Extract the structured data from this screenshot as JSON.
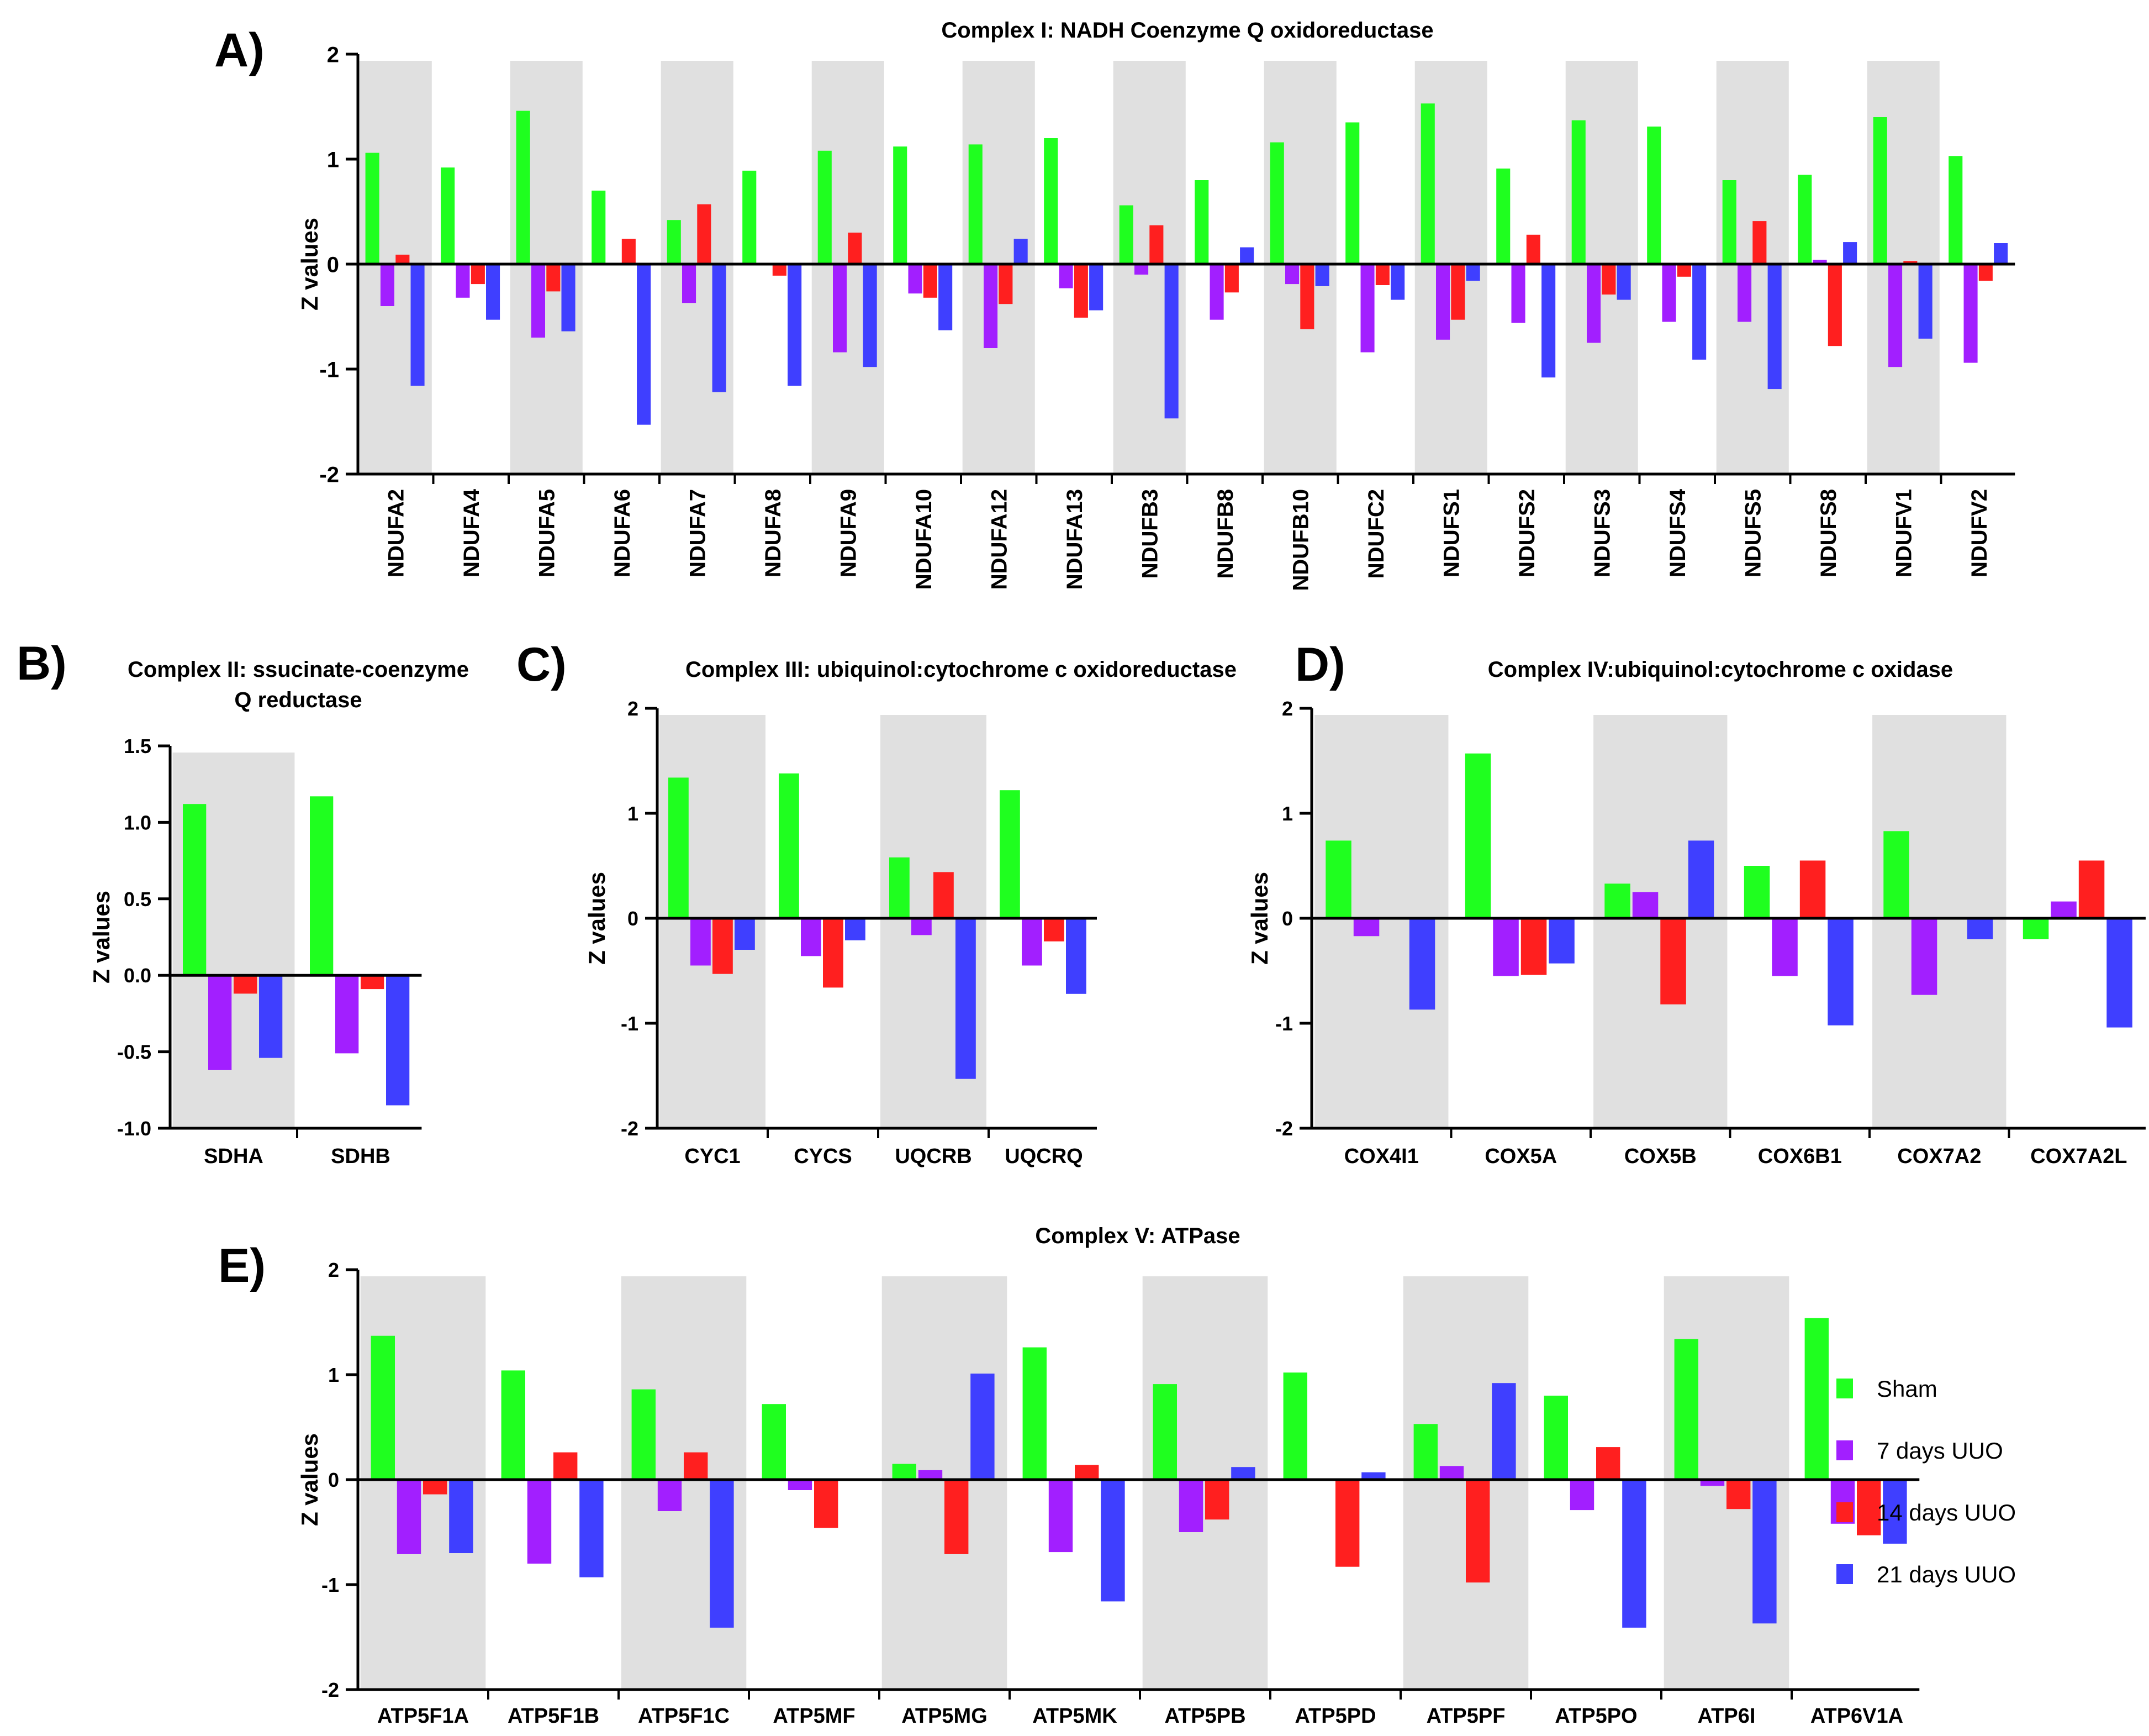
{
  "legend": {
    "colors": [
      "#1fff1f",
      "#a21fff",
      "#ff1f1f",
      "#3f3fff"
    ],
    "entries": [
      "Sham",
      "7 days UUO",
      "14 days UUO",
      "21 days UUO"
    ]
  },
  "chart_data": [
    {
      "panel_label": "A)",
      "type": "bar",
      "title": "Complex I: NADH Coenzyme Q oxidoreductase",
      "ylabel": "Z values",
      "ylim": [
        -2,
        2
      ],
      "yticks": [
        "2",
        "1",
        "0",
        "-1",
        "-2"
      ],
      "ytick_values": [
        2,
        1,
        0,
        -1,
        -2
      ],
      "categories": [
        "NDUFA2",
        "NDUFA4",
        "NDUFA5",
        "NDUFA6",
        "NDUFA7",
        "NDUFA8",
        "NDUFA9",
        "NDUFA10",
        "NDUFA12",
        "NDUFA13",
        "NDUFB3",
        "NDUFB8",
        "NDUFB10",
        "NDUFC2",
        "NDUFS1",
        "NDUFS2",
        "NDUFS3",
        "NDUFS4",
        "NDUFS5",
        "NDUFS8",
        "NDUFV1",
        "NDUFV2"
      ],
      "series": [
        {
          "name": "Sham",
          "values": [
            1.06,
            0.92,
            1.46,
            0.7,
            0.42,
            0.89,
            1.08,
            1.12,
            1.14,
            1.2,
            0.56,
            0.8,
            1.16,
            1.35,
            1.53,
            0.91,
            1.37,
            1.31,
            0.8,
            0.85,
            1.4,
            1.03
          ]
        },
        {
          "name": "7 days UUO",
          "values": [
            -0.4,
            -0.32,
            -0.7,
            0,
            -0.37,
            0,
            -0.84,
            -0.28,
            -0.8,
            -0.23,
            -0.1,
            -0.53,
            -0.19,
            -0.84,
            -0.72,
            -0.56,
            -0.75,
            -0.55,
            -0.55,
            0.04,
            -0.98,
            -0.94
          ]
        },
        {
          "name": "14 days UUO",
          "values": [
            0.09,
            -0.19,
            -0.26,
            0.24,
            0.57,
            -0.11,
            0.3,
            -0.32,
            -0.38,
            -0.51,
            0.37,
            -0.27,
            -0.62,
            -0.2,
            -0.53,
            0.28,
            -0.29,
            -0.12,
            0.41,
            -0.78,
            0.03,
            -0.16
          ]
        },
        {
          "name": "21 days UUO",
          "values": [
            -1.16,
            -0.53,
            -0.64,
            -1.53,
            -1.22,
            -1.16,
            -0.98,
            -0.63,
            0.24,
            -0.44,
            -1.47,
            0.16,
            -0.21,
            -0.34,
            -0.16,
            -1.08,
            -0.34,
            -0.91,
            -1.19,
            0.21,
            -0.71,
            0.2
          ]
        }
      ]
    },
    {
      "panel_label": "B)",
      "type": "bar",
      "title": "Complex II: ssucinate-coenzyme",
      "title2": "Q reductase",
      "ylabel": "Z values",
      "ylim": [
        -1.0,
        1.5
      ],
      "yticks": [
        "1.5",
        "1.0",
        "0.5",
        "0.0",
        "-0.5",
        "-1.0"
      ],
      "ytick_values": [
        1.5,
        1.0,
        0.5,
        0.0,
        -0.5,
        -1.0
      ],
      "categories": [
        "SDHA",
        "SDHB"
      ],
      "series": [
        {
          "name": "Sham",
          "values": [
            1.12,
            1.17
          ]
        },
        {
          "name": "7 days UUO",
          "values": [
            -0.62,
            -0.51
          ]
        },
        {
          "name": "14 days UUO",
          "values": [
            -0.12,
            -0.09
          ]
        },
        {
          "name": "21 days UUO",
          "values": [
            -0.54,
            -0.85
          ]
        }
      ]
    },
    {
      "panel_label": "C)",
      "type": "bar",
      "title": "Complex III: ubiquinol:cytochrome c oxidoreductase",
      "ylabel": "Z values",
      "ylim": [
        -2,
        2
      ],
      "yticks": [
        "2",
        "1",
        "0",
        "-1",
        "-2"
      ],
      "ytick_values": [
        2,
        1,
        0,
        -1,
        -2
      ],
      "categories": [
        "CYC1",
        "CYCS",
        "UQCRB",
        "UQCRQ"
      ],
      "series": [
        {
          "name": "Sham",
          "values": [
            1.34,
            1.38,
            0.58,
            1.22
          ]
        },
        {
          "name": "7 days UUO",
          "values": [
            -0.45,
            -0.36,
            -0.16,
            -0.45
          ]
        },
        {
          "name": "14 days UUO",
          "values": [
            -0.53,
            -0.66,
            0.44,
            -0.22
          ]
        },
        {
          "name": "21 days UUO",
          "values": [
            -0.3,
            -0.21,
            -1.53,
            -0.72
          ]
        }
      ]
    },
    {
      "panel_label": "D)",
      "type": "bar",
      "title": "Complex IV:ubiquinol:cytochrome c oxidase",
      "ylabel": "Z values",
      "ylim": [
        -2,
        2
      ],
      "yticks": [
        "2",
        "1",
        "0",
        "-1",
        "-2"
      ],
      "ytick_values": [
        2,
        1,
        0,
        -1,
        -2
      ],
      "categories": [
        "COX4I1",
        "COX5A",
        "COX5B",
        "COX6B1",
        "COX7A2",
        "COX7A2L"
      ],
      "series": [
        {
          "name": "Sham",
          "values": [
            0.74,
            1.57,
            0.33,
            0.5,
            0.83,
            -0.2
          ]
        },
        {
          "name": "7 days UUO",
          "values": [
            -0.17,
            -0.55,
            0.25,
            -0.55,
            -0.73,
            0.16
          ]
        },
        {
          "name": "14 days UUO",
          "values": [
            0,
            -0.54,
            -0.82,
            0.55,
            0.01,
            0.55
          ]
        },
        {
          "name": "21 days UUO",
          "values": [
            -0.87,
            -0.43,
            0.74,
            -1.02,
            -0.2,
            -1.04
          ]
        }
      ]
    },
    {
      "panel_label": "E)",
      "type": "bar",
      "title": "Complex V: ATPase",
      "ylabel": "Z values",
      "ylim": [
        -2,
        2
      ],
      "yticks": [
        "2",
        "1",
        "0",
        "-1",
        "-2"
      ],
      "ytick_values": [
        2,
        1,
        0,
        -1,
        -2
      ],
      "categories": [
        "ATP5F1A",
        "ATP5F1B",
        "ATP5F1C",
        "ATP5MF",
        "ATP5MG",
        "ATP5MK",
        "ATP5PB",
        "ATP5PD",
        "ATP5PF",
        "ATP5PO",
        "ATP6I",
        "ATP6V1A"
      ],
      "series": [
        {
          "name": "Sham",
          "values": [
            1.37,
            1.04,
            0.86,
            0.72,
            0.15,
            1.26,
            0.91,
            1.02,
            0.53,
            0.8,
            1.34,
            1.54
          ]
        },
        {
          "name": "7 days UUO",
          "values": [
            -0.71,
            -0.8,
            -0.3,
            -0.1,
            0.09,
            -0.69,
            -0.5,
            0,
            0.13,
            -0.29,
            -0.06,
            -0.42
          ]
        },
        {
          "name": "14 days UUO",
          "values": [
            -0.14,
            0.26,
            0.26,
            -0.46,
            -0.71,
            0.14,
            -0.38,
            -0.83,
            -0.98,
            0.31,
            -0.28,
            -0.53
          ]
        },
        {
          "name": "21 days UUO",
          "values": [
            -0.7,
            -0.93,
            -1.41,
            0,
            1.01,
            -1.16,
            0.12,
            0.07,
            0.92,
            -1.41,
            -1.37,
            -0.61
          ]
        }
      ]
    }
  ]
}
